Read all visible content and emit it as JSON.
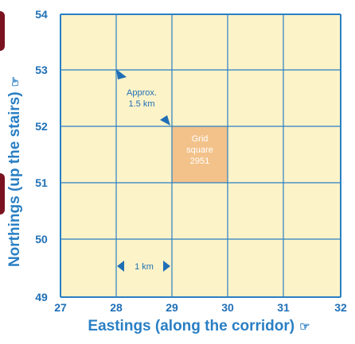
{
  "axes": {
    "x_ticks": [
      "27",
      "28",
      "29",
      "30",
      "31",
      "32"
    ],
    "y_ticks": [
      "49",
      "50",
      "51",
      "52",
      "53",
      "54"
    ],
    "x_title": "Eastings (along the corridor)",
    "y_title": "Northings (up the stairs)",
    "hand_icon_glyph": "☞"
  },
  "annotations": {
    "approx_line1": "Approx.",
    "approx_line2": "1.5 km",
    "scale_label": "1 km"
  },
  "grid_square": {
    "line1": "Grid",
    "line2": "square",
    "line3": "2951",
    "easting": 29,
    "northing": 51
  },
  "colors": {
    "background": "#fdf3c8",
    "grid": "#2a7fc4",
    "highlight": "#f3c28a",
    "label": "#1f6fb6",
    "edge_mark": "#7a1220"
  }
}
